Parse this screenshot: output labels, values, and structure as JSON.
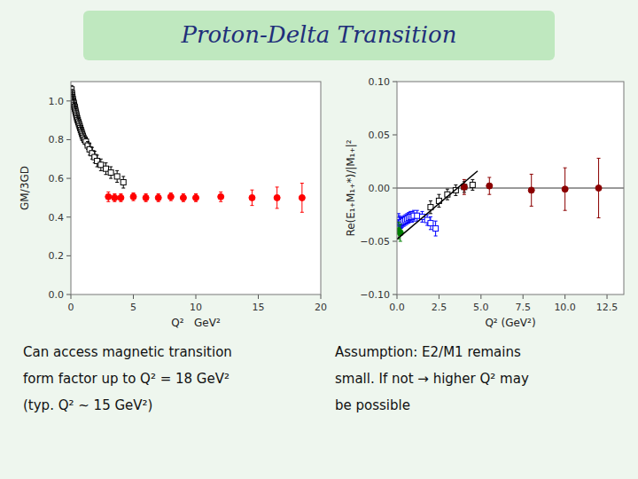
{
  "chart_data": [
    {
      "type": "scatter",
      "title": "Proton-Delta Transition",
      "x_label": "Q²   GeV²",
      "y_label": "GM/3GD",
      "xlim": [
        0,
        20
      ],
      "ylim": [
        0.0,
        1.1
      ],
      "xticks": [
        0,
        5,
        10,
        15,
        20
      ],
      "yticks": [
        {
          "value": 0.0,
          "label": "0.0"
        },
        0.2,
        0.4,
        0.6,
        0.8,
        {
          "value": 1.0,
          "label": "1.0"
        }
      ],
      "grid": false,
      "series": [
        {
          "type": "scatter",
          "marker": "open-square",
          "color": "black",
          "x": [
            0.05,
            0.08,
            0.1,
            0.12,
            0.15,
            0.18,
            0.2,
            0.22,
            0.25,
            0.28,
            0.3,
            0.33,
            0.36,
            0.4,
            0.43,
            0.47,
            0.5,
            0.55,
            0.6,
            0.65,
            0.7,
            0.75,
            0.8,
            0.85,
            0.9,
            0.95,
            1.0,
            1.1,
            1.2,
            1.35,
            1.5,
            1.7,
            1.9,
            2.1,
            2.4,
            2.8,
            3.2,
            3.7,
            4.2
          ],
          "values": [
            1.06,
            1.04,
            1.03,
            1.02,
            1.01,
            1.0,
            0.99,
            0.99,
            0.98,
            0.97,
            0.97,
            0.96,
            0.95,
            0.94,
            0.93,
            0.92,
            0.91,
            0.9,
            0.89,
            0.88,
            0.87,
            0.86,
            0.85,
            0.84,
            0.83,
            0.82,
            0.81,
            0.8,
            0.79,
            0.77,
            0.75,
            0.73,
            0.71,
            0.69,
            0.67,
            0.65,
            0.63,
            0.61,
            0.58
          ],
          "errors": [
            0.02,
            0.02,
            0.02,
            0.02,
            0.02,
            0.02,
            0.02,
            0.02,
            0.02,
            0.02,
            0.02,
            0.02,
            0.02,
            0.02,
            0.02,
            0.02,
            0.02,
            0.02,
            0.02,
            0.02,
            0.02,
            0.02,
            0.02,
            0.02,
            0.02,
            0.02,
            0.02,
            0.02,
            0.02,
            0.02,
            0.03,
            0.03,
            0.03,
            0.03,
            0.03,
            0.03,
            0.03,
            0.03,
            0.03
          ]
        },
        {
          "type": "scatter",
          "marker": "circle",
          "color": "red",
          "x": [
            3.0,
            3.5,
            4.0,
            5.0,
            6.0,
            7.0,
            8.0,
            9.0,
            10.0,
            12.0,
            14.5,
            16.5,
            18.5
          ],
          "values": [
            0.505,
            0.5,
            0.5,
            0.505,
            0.5,
            0.5,
            0.505,
            0.5,
            0.5,
            0.505,
            0.5,
            0.5,
            0.5
          ],
          "errors": [
            0.025,
            0.02,
            0.02,
            0.02,
            0.02,
            0.02,
            0.02,
            0.02,
            0.02,
            0.025,
            0.04,
            0.055,
            0.075
          ]
        }
      ],
      "annotations": [
        "Can access magnetic transition",
        "form factor up to Q² = 18 GeV²",
        "(typ. Q² ~ 15 GeV²)"
      ]
    },
    {
      "type": "scatter",
      "x_label": "Q² (GeV²)",
      "y_label": "Re(E₁₊M₁₊*)/|M₁₊|²",
      "xlim": [
        0.0,
        13.5
      ],
      "ylim": [
        -0.1,
        0.1
      ],
      "xticks": [
        {
          "value": 0.0,
          "label": "0.0"
        },
        2.5,
        {
          "value": 5.0,
          "label": "5.0"
        },
        7.5,
        {
          "value": 10.0,
          "label": "10.0"
        },
        12.5
      ],
      "yticks": [
        {
          "value": -0.1,
          "label": "−0.10"
        },
        {
          "value": -0.05,
          "label": "−0.05"
        },
        {
          "value": 0.0,
          "label": "0.00"
        },
        {
          "value": 0.05,
          "label": "0.05"
        },
        {
          "value": 0.1,
          "label": "0.10"
        }
      ],
      "grid": false,
      "hlines": [
        0
      ],
      "series": [
        {
          "type": "scatter",
          "marker": "open-square",
          "color": "blue",
          "x": [
            0.1,
            0.15,
            0.2,
            0.25,
            0.3,
            0.4,
            0.5,
            0.6,
            0.7,
            0.8,
            0.9,
            1.0,
            1.2,
            1.5,
            1.8,
            2.0,
            2.3
          ],
          "values": [
            -0.03,
            -0.032,
            -0.033,
            -0.033,
            -0.032,
            -0.031,
            -0.03,
            -0.029,
            -0.028,
            -0.027,
            -0.027,
            -0.026,
            -0.026,
            -0.027,
            -0.03,
            -0.033,
            -0.038
          ],
          "errors": [
            0.006,
            0.006,
            0.005,
            0.005,
            0.005,
            0.005,
            0.005,
            0.005,
            0.005,
            0.005,
            0.005,
            0.005,
            0.005,
            0.005,
            0.005,
            0.006,
            0.007
          ]
        },
        {
          "type": "scatter",
          "marker": "circle",
          "color": "green",
          "x": [
            0.1,
            0.2
          ],
          "values": [
            -0.04,
            -0.042
          ],
          "errors": [
            0.008,
            0.008
          ]
        },
        {
          "type": "scatter",
          "marker": "open-square",
          "color": "black",
          "x": [
            2.0,
            2.5,
            3.0,
            3.5,
            4.0,
            4.5
          ],
          "values": [
            -0.018,
            -0.012,
            -0.006,
            -0.002,
            0.001,
            0.003
          ],
          "errors": [
            0.006,
            0.006,
            0.005,
            0.005,
            0.005,
            0.005
          ]
        },
        {
          "type": "scatter",
          "marker": "circle",
          "color": "#8B0000",
          "x": [
            4.0,
            5.5,
            8.0,
            10.0,
            12.0
          ],
          "values": [
            0.001,
            0.002,
            -0.002,
            -0.001,
            0.0
          ],
          "errors": [
            0.007,
            0.008,
            0.015,
            0.02,
            0.028
          ]
        },
        {
          "type": "line",
          "line_style": "solid",
          "color": "black",
          "x": [
            0.0,
            4.8
          ],
          "values": [
            -0.048,
            0.016
          ]
        }
      ],
      "annotations": [
        "Assumption: E2/M1 remains",
        "small. If not → higher Q² may",
        "be possible"
      ]
    }
  ]
}
